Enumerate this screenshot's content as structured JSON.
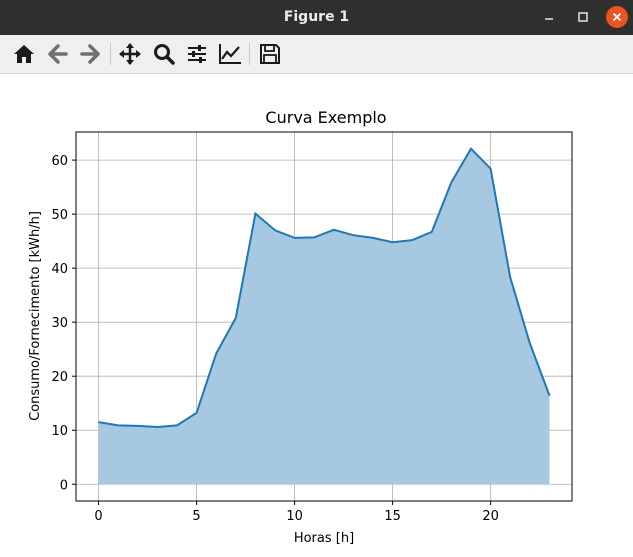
{
  "window": {
    "title": "Figure 1",
    "controls": [
      "minimize-icon",
      "maximize-icon",
      "close-icon"
    ]
  },
  "toolbar": {
    "buttons": [
      {
        "name": "home-button",
        "icon": "home-icon"
      },
      {
        "name": "back-button",
        "icon": "arrow-left-icon"
      },
      {
        "name": "forward-button",
        "icon": "arrow-right-icon"
      },
      {
        "name": "pan-button",
        "icon": "move-icon"
      },
      {
        "name": "zoom-button",
        "icon": "magnifier-icon"
      },
      {
        "name": "configure-subplots-button",
        "icon": "sliders-icon"
      },
      {
        "name": "edit-axis-button",
        "icon": "line-chart-icon"
      },
      {
        "name": "save-button",
        "icon": "floppy-disk-icon"
      }
    ]
  },
  "chart_data": {
    "type": "area",
    "title": "Curva Exemplo",
    "xlabel": "Horas [h]",
    "ylabel": "Consumo/Fornecimento [kWh/h]",
    "x": [
      0,
      1,
      2,
      3,
      4,
      5,
      6,
      7,
      8,
      9,
      10,
      11,
      12,
      13,
      14,
      15,
      16,
      17,
      18,
      19,
      20,
      21,
      22,
      23
    ],
    "values": [
      11.5,
      10.9,
      10.8,
      10.6,
      10.9,
      13.2,
      24.2,
      30.8,
      50.1,
      47.0,
      45.6,
      45.7,
      47.1,
      46.1,
      45.6,
      44.8,
      45.2,
      46.7,
      55.9,
      62.1,
      58.4,
      38.3,
      26.1,
      16.4
    ],
    "xlim": [
      -1.15,
      24.15
    ],
    "ylim": [
      -3.1,
      65.2
    ],
    "xticks": [
      0,
      5,
      10,
      15,
      20
    ],
    "yticks": [
      0,
      10,
      20,
      30,
      40,
      50,
      60
    ],
    "grid": true,
    "line_color": "#1f77b4",
    "fill_color": "#a6c8e1"
  }
}
